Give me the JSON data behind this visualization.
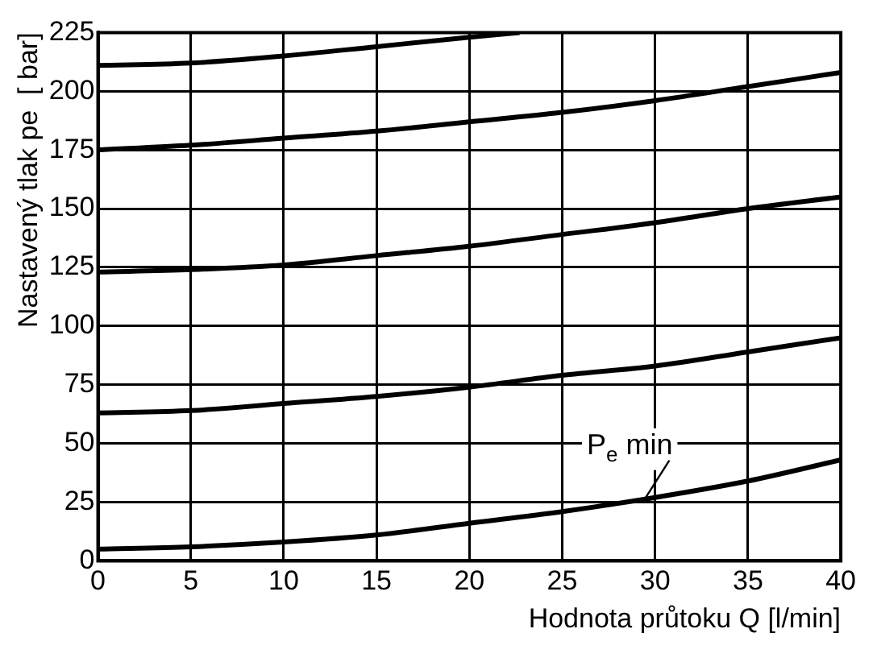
{
  "chart_data": {
    "type": "line",
    "xlabel": "Hodnota průtoku Q [l/min]",
    "ylabel": "Nastavený tlak pe  [ bar]",
    "xlim": [
      0,
      40
    ],
    "xticks": [
      0,
      5,
      10,
      15,
      20,
      25,
      30,
      35,
      40
    ],
    "ylim": [
      0,
      225
    ],
    "yticks": [
      0,
      25,
      50,
      75,
      100,
      125,
      150,
      175,
      200,
      225
    ],
    "grid": true,
    "legend": false,
    "marker": "none",
    "line_style": "solid",
    "series": [
      {
        "color": "#000000",
        "x": [
          0,
          5,
          10,
          15,
          20,
          22.7
        ],
        "values": [
          211,
          212,
          215,
          219,
          223,
          225
        ]
      },
      {
        "color": "#000000",
        "x": [
          0,
          5,
          10,
          15,
          20,
          25,
          30,
          35,
          40
        ],
        "values": [
          175,
          177,
          180,
          183,
          187,
          191,
          196,
          202,
          208
        ]
      },
      {
        "color": "#000000",
        "x": [
          0,
          5,
          10,
          15,
          20,
          25,
          30,
          35,
          40
        ],
        "values": [
          123,
          124,
          126,
          130,
          134,
          139,
          144,
          150,
          155
        ]
      },
      {
        "color": "#000000",
        "x": [
          0,
          5,
          10,
          15,
          20,
          25,
          30,
          35,
          40
        ],
        "values": [
          63,
          64,
          67,
          70,
          74,
          79,
          83,
          89,
          95
        ]
      },
      {
        "color": "#000000",
        "x": [
          0,
          5,
          10,
          15,
          20,
          25,
          30,
          35,
          40
        ],
        "values": [
          5,
          6,
          8,
          11,
          16,
          21,
          27,
          34,
          43
        ]
      }
    ],
    "annotations": [
      {
        "text": "P$_{e}$ min",
        "x": 29.5,
        "y": 27
      }
    ]
  }
}
